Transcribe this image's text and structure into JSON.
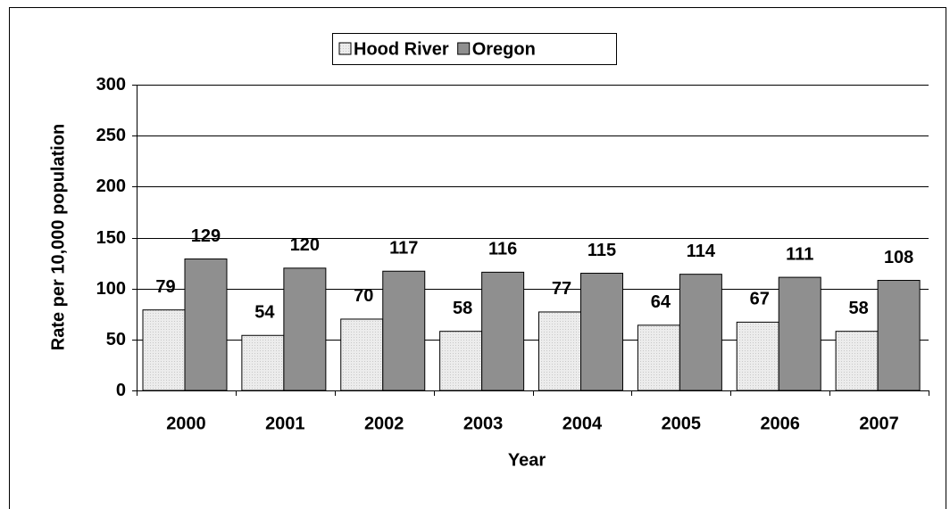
{
  "chart_data": {
    "type": "bar",
    "x_label": "Year",
    "y_label": "Rate per 10,000 population",
    "categories": [
      "2000",
      "2001",
      "2002",
      "2003",
      "2004",
      "2005",
      "2006",
      "2007"
    ],
    "series": [
      {
        "name": "Hood River",
        "color": "#e6e6e6",
        "values": [
          79,
          54,
          70,
          58,
          77,
          64,
          67,
          58
        ]
      },
      {
        "name": "Oregon",
        "color": "#8f8f8f",
        "values": [
          129,
          120,
          117,
          116,
          115,
          114,
          111,
          108
        ]
      }
    ],
    "ylim": [
      0,
      300
    ],
    "yticks": [
      0,
      50,
      100,
      150,
      200,
      250,
      300
    ],
    "grid": true,
    "legend": "top"
  }
}
